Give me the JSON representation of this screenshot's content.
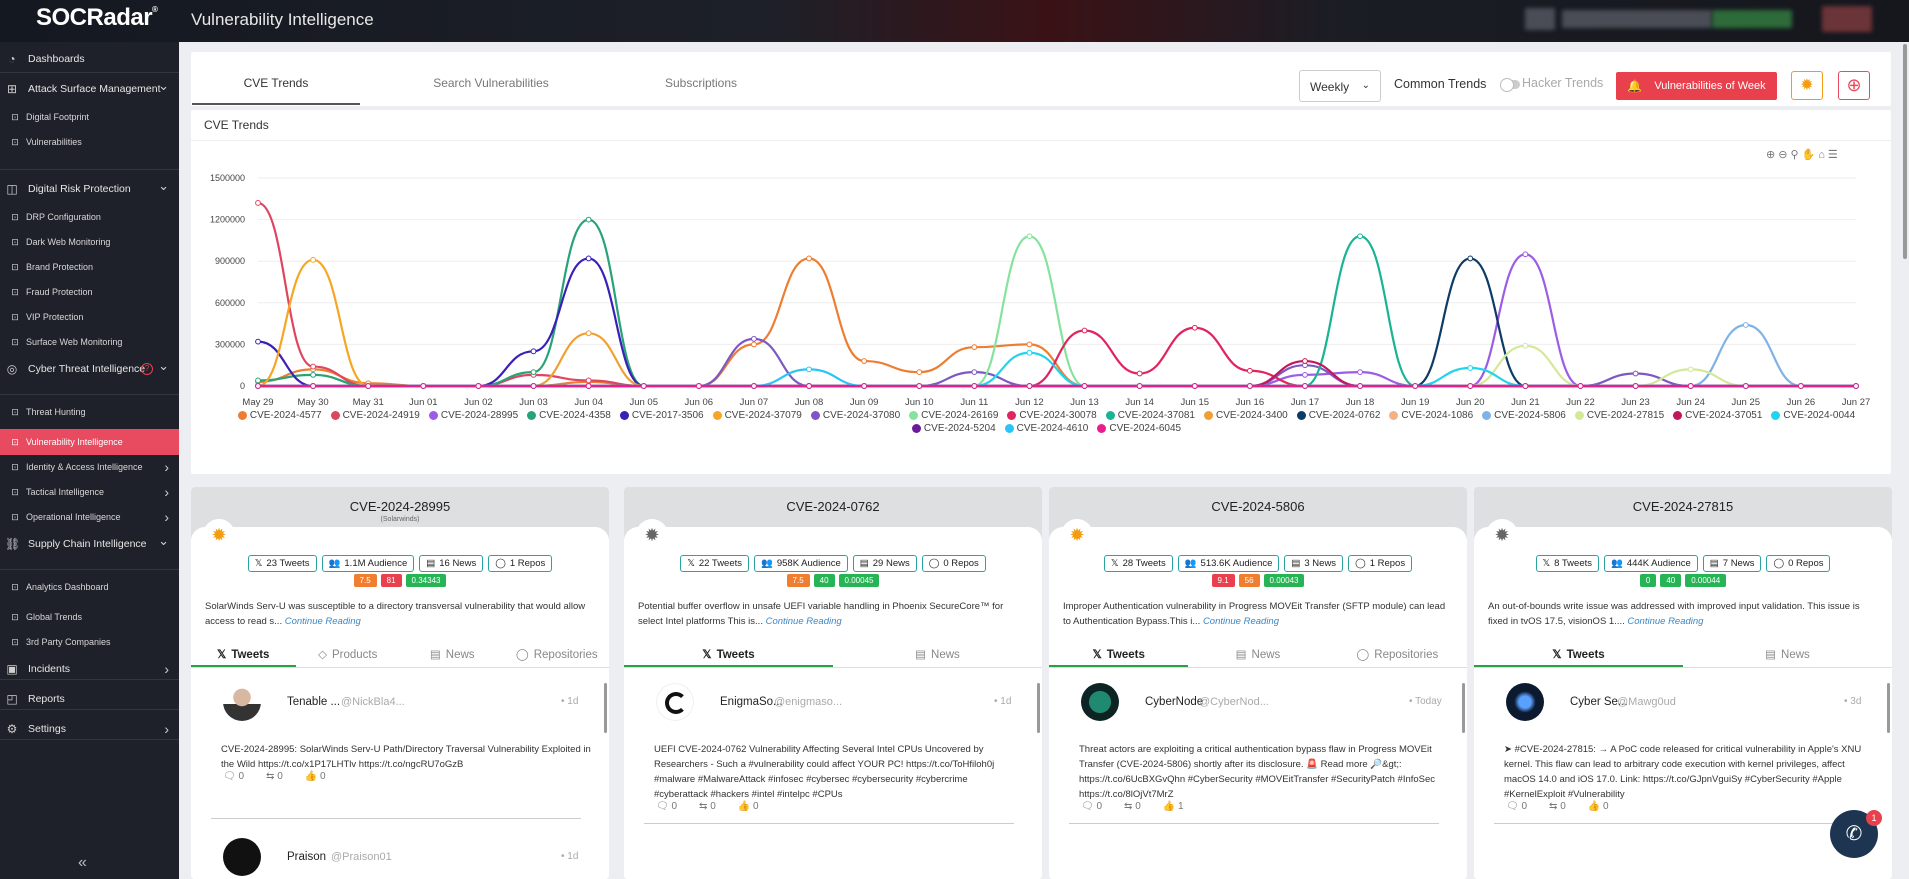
{
  "app": {
    "logo": "SOCRadar",
    "logo_mark": "®",
    "title": "Vulnerability Intelligence"
  },
  "sidebar": {
    "items": [
      {
        "label": "Dashboards",
        "icon": "dashboard-icon",
        "type": "main"
      },
      {
        "label": "Attack Surface Management",
        "icon": "asm-icon",
        "type": "main",
        "chevron": "down"
      },
      {
        "label": "Digital Footprint",
        "type": "sub"
      },
      {
        "label": "Vulnerabilities",
        "type": "sub"
      },
      {
        "label": "Digital Risk Protection",
        "icon": "drp-icon",
        "type": "main",
        "chevron": "down"
      },
      {
        "label": "DRP Configuration",
        "type": "sub"
      },
      {
        "label": "Dark Web Monitoring",
        "type": "sub"
      },
      {
        "label": "Brand Protection",
        "type": "sub"
      },
      {
        "label": "Fraud Protection",
        "type": "sub"
      },
      {
        "label": "VIP Protection",
        "type": "sub"
      },
      {
        "label": "Surface Web Monitoring",
        "type": "sub"
      },
      {
        "label": "Cyber Threat Intelligence",
        "icon": "cti-icon",
        "type": "main",
        "chevron": "down"
      },
      {
        "label": "Threat Hunting",
        "type": "sub"
      },
      {
        "label": "Vulnerability Intelligence",
        "type": "sub",
        "active": true
      },
      {
        "label": "Identity & Access Intelligence",
        "type": "sub",
        "chevron": "right"
      },
      {
        "label": "Tactical Intelligence",
        "type": "sub",
        "chevron": "right"
      },
      {
        "label": "Operational Intelligence",
        "type": "sub",
        "chevron": "right"
      },
      {
        "label": "Supply Chain Intelligence",
        "icon": "supply-chain-icon",
        "type": "main",
        "chevron": "down"
      },
      {
        "label": "Analytics Dashboard",
        "type": "sub"
      },
      {
        "label": "Global Trends",
        "type": "sub"
      },
      {
        "label": "3rd Party Companies",
        "type": "sub"
      },
      {
        "label": "Incidents",
        "icon": "incidents-icon",
        "type": "main",
        "chevron": "right"
      },
      {
        "label": "Reports",
        "icon": "reports-icon",
        "type": "main"
      },
      {
        "label": "Settings",
        "icon": "settings-icon",
        "type": "main",
        "chevron": "right"
      }
    ],
    "collapse": "«"
  },
  "toolbar": {
    "tabs": [
      "CVE Trends",
      "Search Vulnerabilities",
      "Subscriptions"
    ],
    "active_tab": "CVE Trends",
    "period": "Weekly",
    "common_trends": "Common Trends",
    "hacker_trends": "Hacker Trends",
    "vow_label": "Vulnerabilities of Week"
  },
  "chart_title": "CVE Trends",
  "chart_data": {
    "type": "line",
    "title": "CVE Trends",
    "x": [
      "May 29",
      "May 30",
      "May 31",
      "Jun 01",
      "Jun 02",
      "Jun 03",
      "Jun 04",
      "Jun 05",
      "Jun 06",
      "Jun 07",
      "Jun 08",
      "Jun 09",
      "Jun 10",
      "Jun 11",
      "Jun 12",
      "Jun 13",
      "Jun 14",
      "Jun 15",
      "Jun 16",
      "Jun 17",
      "Jun 18",
      "Jun 19",
      "Jun 20",
      "Jun 21",
      "Jun 22",
      "Jun 23",
      "Jun 24",
      "Jun 25",
      "Jun 26",
      "Jun 27"
    ],
    "ylim": [
      0,
      1500000
    ],
    "yticks": [
      0,
      300000,
      600000,
      900000,
      1200000,
      1500000
    ],
    "ytick_labels": [
      "0",
      "300000",
      "600000",
      "900000",
      "1200000",
      "1500000"
    ],
    "legend_position": "bottom",
    "series": [
      {
        "name": "CVE-2024-4577",
        "color": "#ed7d31",
        "values": [
          30000,
          120000,
          20000,
          0,
          0,
          0,
          30000,
          0,
          0,
          300000,
          920000,
          180000,
          100000,
          280000,
          300000,
          0,
          0,
          0,
          0,
          0,
          0,
          0,
          0,
          0,
          0,
          0,
          0,
          0,
          0,
          0
        ]
      },
      {
        "name": "CVE-2024-24919",
        "color": "#e0455f",
        "values": [
          1320000,
          140000,
          0,
          0,
          0,
          80000,
          40000,
          0,
          0,
          0,
          0,
          0,
          0,
          0,
          0,
          0,
          0,
          0,
          0,
          0,
          0,
          0,
          0,
          0,
          0,
          0,
          0,
          0,
          0,
          0
        ]
      },
      {
        "name": "CVE-2024-28995",
        "color": "#9b5de5",
        "values": [
          0,
          0,
          0,
          0,
          0,
          0,
          0,
          0,
          0,
          0,
          0,
          0,
          0,
          0,
          0,
          0,
          0,
          0,
          0,
          80000,
          100000,
          0,
          0,
          950000,
          0,
          0,
          0,
          0,
          0,
          0
        ]
      },
      {
        "name": "CVE-2024-4358",
        "color": "#27a376",
        "values": [
          40000,
          80000,
          0,
          0,
          0,
          100000,
          1200000,
          0,
          0,
          0,
          0,
          0,
          0,
          0,
          0,
          0,
          0,
          0,
          0,
          0,
          0,
          0,
          0,
          0,
          0,
          0,
          0,
          0,
          0,
          0
        ]
      },
      {
        "name": "CVE-2017-3506",
        "color": "#3a1fb8",
        "values": [
          320000,
          0,
          0,
          0,
          0,
          250000,
          920000,
          0,
          0,
          0,
          0,
          0,
          0,
          0,
          0,
          0,
          0,
          0,
          0,
          0,
          0,
          0,
          0,
          0,
          0,
          0,
          0,
          0,
          0,
          0
        ]
      },
      {
        "name": "CVE-2024-37079",
        "color": "#f5a623",
        "values": [
          0,
          910000,
          0,
          0,
          0,
          0,
          0,
          0,
          0,
          0,
          0,
          0,
          0,
          0,
          0,
          0,
          0,
          0,
          0,
          0,
          0,
          0,
          0,
          0,
          0,
          0,
          0,
          0,
          0,
          0
        ]
      },
      {
        "name": "CVE-2024-37080",
        "color": "#7e57c2",
        "values": [
          0,
          0,
          0,
          0,
          0,
          0,
          0,
          0,
          0,
          340000,
          0,
          0,
          0,
          100000,
          0,
          0,
          0,
          0,
          0,
          150000,
          0,
          0,
          0,
          0,
          0,
          90000,
          0,
          0,
          0,
          0
        ]
      },
      {
        "name": "CVE-2024-26169",
        "color": "#86e39e",
        "values": [
          0,
          0,
          0,
          0,
          0,
          0,
          0,
          0,
          0,
          0,
          0,
          0,
          0,
          0,
          1080000,
          0,
          0,
          0,
          0,
          0,
          0,
          0,
          0,
          0,
          0,
          0,
          0,
          0,
          0,
          0
        ]
      },
      {
        "name": "CVE-2024-30078",
        "color": "#e0245e",
        "values": [
          0,
          0,
          0,
          0,
          0,
          0,
          0,
          0,
          0,
          0,
          0,
          0,
          0,
          0,
          0,
          400000,
          90000,
          420000,
          110000,
          0,
          0,
          0,
          0,
          0,
          0,
          0,
          0,
          0,
          0,
          0
        ]
      },
      {
        "name": "CVE-2024-37081",
        "color": "#1ab394",
        "values": [
          0,
          0,
          0,
          0,
          0,
          0,
          0,
          0,
          0,
          0,
          0,
          0,
          0,
          0,
          0,
          0,
          0,
          0,
          0,
          0,
          1080000,
          0,
          0,
          0,
          0,
          0,
          0,
          0,
          0,
          0
        ]
      },
      {
        "name": "CVE-2024-3400",
        "color": "#f0a030",
        "values": [
          0,
          0,
          0,
          0,
          0,
          0,
          380000,
          0,
          0,
          0,
          0,
          0,
          0,
          0,
          0,
          0,
          0,
          0,
          0,
          0,
          0,
          0,
          0,
          0,
          0,
          0,
          0,
          0,
          0,
          0
        ]
      },
      {
        "name": "CVE-2024-0762",
        "color": "#0d3b66",
        "values": [
          0,
          0,
          0,
          0,
          0,
          0,
          0,
          0,
          0,
          0,
          0,
          0,
          0,
          0,
          0,
          0,
          0,
          0,
          0,
          0,
          0,
          0,
          920000,
          0,
          0,
          0,
          0,
          0,
          0,
          0
        ]
      },
      {
        "name": "CVE-2024-1086",
        "color": "#f4b183",
        "values": [
          0,
          0,
          0,
          0,
          0,
          0,
          0,
          0,
          0,
          0,
          0,
          0,
          0,
          0,
          0,
          0,
          0,
          0,
          0,
          0,
          0,
          0,
          0,
          0,
          0,
          0,
          0,
          0,
          0,
          0
        ]
      },
      {
        "name": "CVE-2024-5806",
        "color": "#7fb3e6",
        "values": [
          0,
          0,
          0,
          0,
          0,
          0,
          0,
          0,
          0,
          0,
          0,
          0,
          0,
          0,
          0,
          0,
          0,
          0,
          0,
          0,
          0,
          0,
          0,
          0,
          0,
          0,
          0,
          440000,
          0,
          0
        ]
      },
      {
        "name": "CVE-2024-27815",
        "color": "#d4e89a",
        "values": [
          0,
          0,
          0,
          0,
          0,
          0,
          0,
          0,
          0,
          0,
          0,
          0,
          0,
          0,
          0,
          0,
          0,
          0,
          0,
          0,
          0,
          0,
          0,
          290000,
          0,
          0,
          120000,
          0,
          0,
          0
        ]
      },
      {
        "name": "CVE-2024-37051",
        "color": "#c2185b",
        "values": [
          0,
          0,
          0,
          0,
          0,
          0,
          0,
          0,
          0,
          0,
          0,
          0,
          0,
          0,
          0,
          0,
          0,
          0,
          0,
          180000,
          0,
          0,
          0,
          0,
          0,
          0,
          0,
          0,
          0,
          0
        ]
      },
      {
        "name": "CVE-2024-0044",
        "color": "#22d3ee",
        "values": [
          0,
          0,
          0,
          0,
          0,
          0,
          0,
          0,
          0,
          0,
          0,
          0,
          0,
          0,
          240000,
          0,
          0,
          0,
          0,
          0,
          0,
          0,
          130000,
          0,
          0,
          0,
          0,
          0,
          0,
          0
        ]
      },
      {
        "name": "CVE-2024-5204",
        "color": "#6a1b9a",
        "values": [
          0,
          0,
          0,
          0,
          0,
          0,
          0,
          0,
          0,
          0,
          0,
          0,
          0,
          0,
          0,
          0,
          0,
          0,
          0,
          0,
          0,
          0,
          0,
          0,
          0,
          0,
          0,
          0,
          0,
          0
        ]
      },
      {
        "name": "CVE-2024-4610",
        "color": "#29c5f6",
        "values": [
          0,
          0,
          0,
          0,
          0,
          0,
          0,
          0,
          0,
          0,
          120000,
          0,
          0,
          0,
          0,
          0,
          0,
          0,
          0,
          0,
          0,
          0,
          0,
          0,
          0,
          0,
          0,
          0,
          0,
          0
        ]
      },
      {
        "name": "CVE-2024-6045",
        "color": "#e91e8c",
        "values": [
          0,
          0,
          0,
          0,
          0,
          0,
          0,
          0,
          0,
          0,
          0,
          0,
          0,
          0,
          0,
          0,
          0,
          0,
          0,
          0,
          0,
          0,
          0,
          0,
          0,
          0,
          0,
          0,
          0,
          0
        ]
      }
    ]
  },
  "cards": [
    {
      "cve": "CVE-2024-28995",
      "vendor": "(Solarwinds)",
      "bug_color": "#f39c12",
      "stats": [
        "23 Tweets",
        "1.1M Audience",
        "16 News",
        "1 Repos"
      ],
      "scores": [
        {
          "v": "7.5",
          "c": "#f07e30"
        },
        {
          "v": "81",
          "c": "#e8404d"
        },
        {
          "v": "0.34343",
          "c": "#27b455"
        }
      ],
      "desc": "SolarWinds Serv-U was susceptible to a directory transversal vulnerability that would allow access to read s...",
      "continue": "Continue Reading",
      "tabs": [
        "Tweets",
        "Products",
        "News",
        "Repositories"
      ],
      "tweet": {
        "name": "Tenable ...",
        "handle": "@NickBla4...",
        "time": "• 1d",
        "text": "CVE-2024-28995: SolarWinds Serv-U Path/Directory Traversal Vulnerability Exploited in the Wild https://t.co/x1P17LHTlv https://t.co/ngcRU7oGzB",
        "replies": "0",
        "retweets": "0",
        "likes": "0"
      },
      "tweet2": {
        "name": "Praison",
        "handle": "@Praison01",
        "time": "• 1d"
      }
    },
    {
      "cve": "CVE-2024-0762",
      "vendor": "",
      "bug_color": "#666",
      "stats": [
        "22 Tweets",
        "958K Audience",
        "29 News",
        "0 Repos"
      ],
      "scores": [
        {
          "v": "7.5",
          "c": "#f07e30"
        },
        {
          "v": "40",
          "c": "#27b455"
        },
        {
          "v": "0.00045",
          "c": "#27b455"
        }
      ],
      "desc": "Potential buffer overflow in unsafe UEFI variable handling in Phoenix SecureCore™ for select Intel platforms This is...",
      "continue": "Continue Reading",
      "tabs": [
        "Tweets",
        "News"
      ],
      "tweet": {
        "name": "EnigmaSo...",
        "handle": "@enigmaso...",
        "time": "• 1d",
        "text": "UEFI CVE-2024-0762 Vulnerability Affecting Several Intel CPUs Uncovered by Researchers - Such a #vulnerability could affect YOUR PC! https://t.co/ToHfiloh0j #malware #MalwareAttack #infosec #cybersec #cybersecurity #cybercrime #cyberattack #hackers #intel #intelpc #CPUs",
        "replies": "0",
        "retweets": "0",
        "likes": "0"
      }
    },
    {
      "cve": "CVE-2024-5806",
      "vendor": "",
      "bug_color": "#f39c12",
      "stats": [
        "28 Tweets",
        "513.6K Audience",
        "3 News",
        "1 Repos"
      ],
      "scores": [
        {
          "v": "9.1",
          "c": "#e8404d"
        },
        {
          "v": "56",
          "c": "#f07e30"
        },
        {
          "v": "0.00043",
          "c": "#27b455"
        }
      ],
      "desc": "Improper Authentication vulnerability in Progress MOVEit Transfer (SFTP module) can lead to Authentication Bypass.This i...",
      "continue": "Continue Reading",
      "tabs": [
        "Tweets",
        "News",
        "Repositories"
      ],
      "tweet": {
        "name": "CyberNode",
        "handle": "@CyberNod...",
        "time": "• Today",
        "text": "Threat actors are exploiting a critical authentication bypass flaw in Progress MOVEit Transfer (CVE-2024-5806) shortly after its disclosure. 🚨 Read more 🔎&gt;: https://t.co/6UcBXGvQhn #CyberSecurity #MOVEitTransfer #SecurityPatch #InfoSec https://t.co/8lOjVt7MrZ",
        "replies": "0",
        "retweets": "0",
        "likes": "1"
      }
    },
    {
      "cve": "CVE-2024-27815",
      "vendor": "",
      "bug_color": "#666",
      "stats": [
        "8 Tweets",
        "444K Audience",
        "7 News",
        "0 Repos"
      ],
      "scores": [
        {
          "v": "0",
          "c": "#27b455"
        },
        {
          "v": "40",
          "c": "#27b455"
        },
        {
          "v": "0.00044",
          "c": "#27b455"
        }
      ],
      "desc": "An out-of-bounds write issue was addressed with improved input validation. This issue is fixed in tvOS 17.5, visionOS 1....",
      "continue": "Continue Reading",
      "tabs": [
        "Tweets",
        "News"
      ],
      "tweet": {
        "name": "Cyber Se...",
        "handle": "@Mawg0ud",
        "time": "• 3d",
        "text": "➤ #CVE-2024-27815: → A PoC code released for critical vulnerability in Apple's XNU kernel. This flaw can lead to arbitrary code execution with kernel privileges, affect macOS 14.0 and iOS 17.0. Link: https://t.co/GJpnVguiSy #CyberSecurity #Apple #KernelExploit #Vulnerability",
        "replies": "0",
        "retweets": "0",
        "likes": "0"
      }
    }
  ],
  "chat": {
    "badge": "1"
  }
}
